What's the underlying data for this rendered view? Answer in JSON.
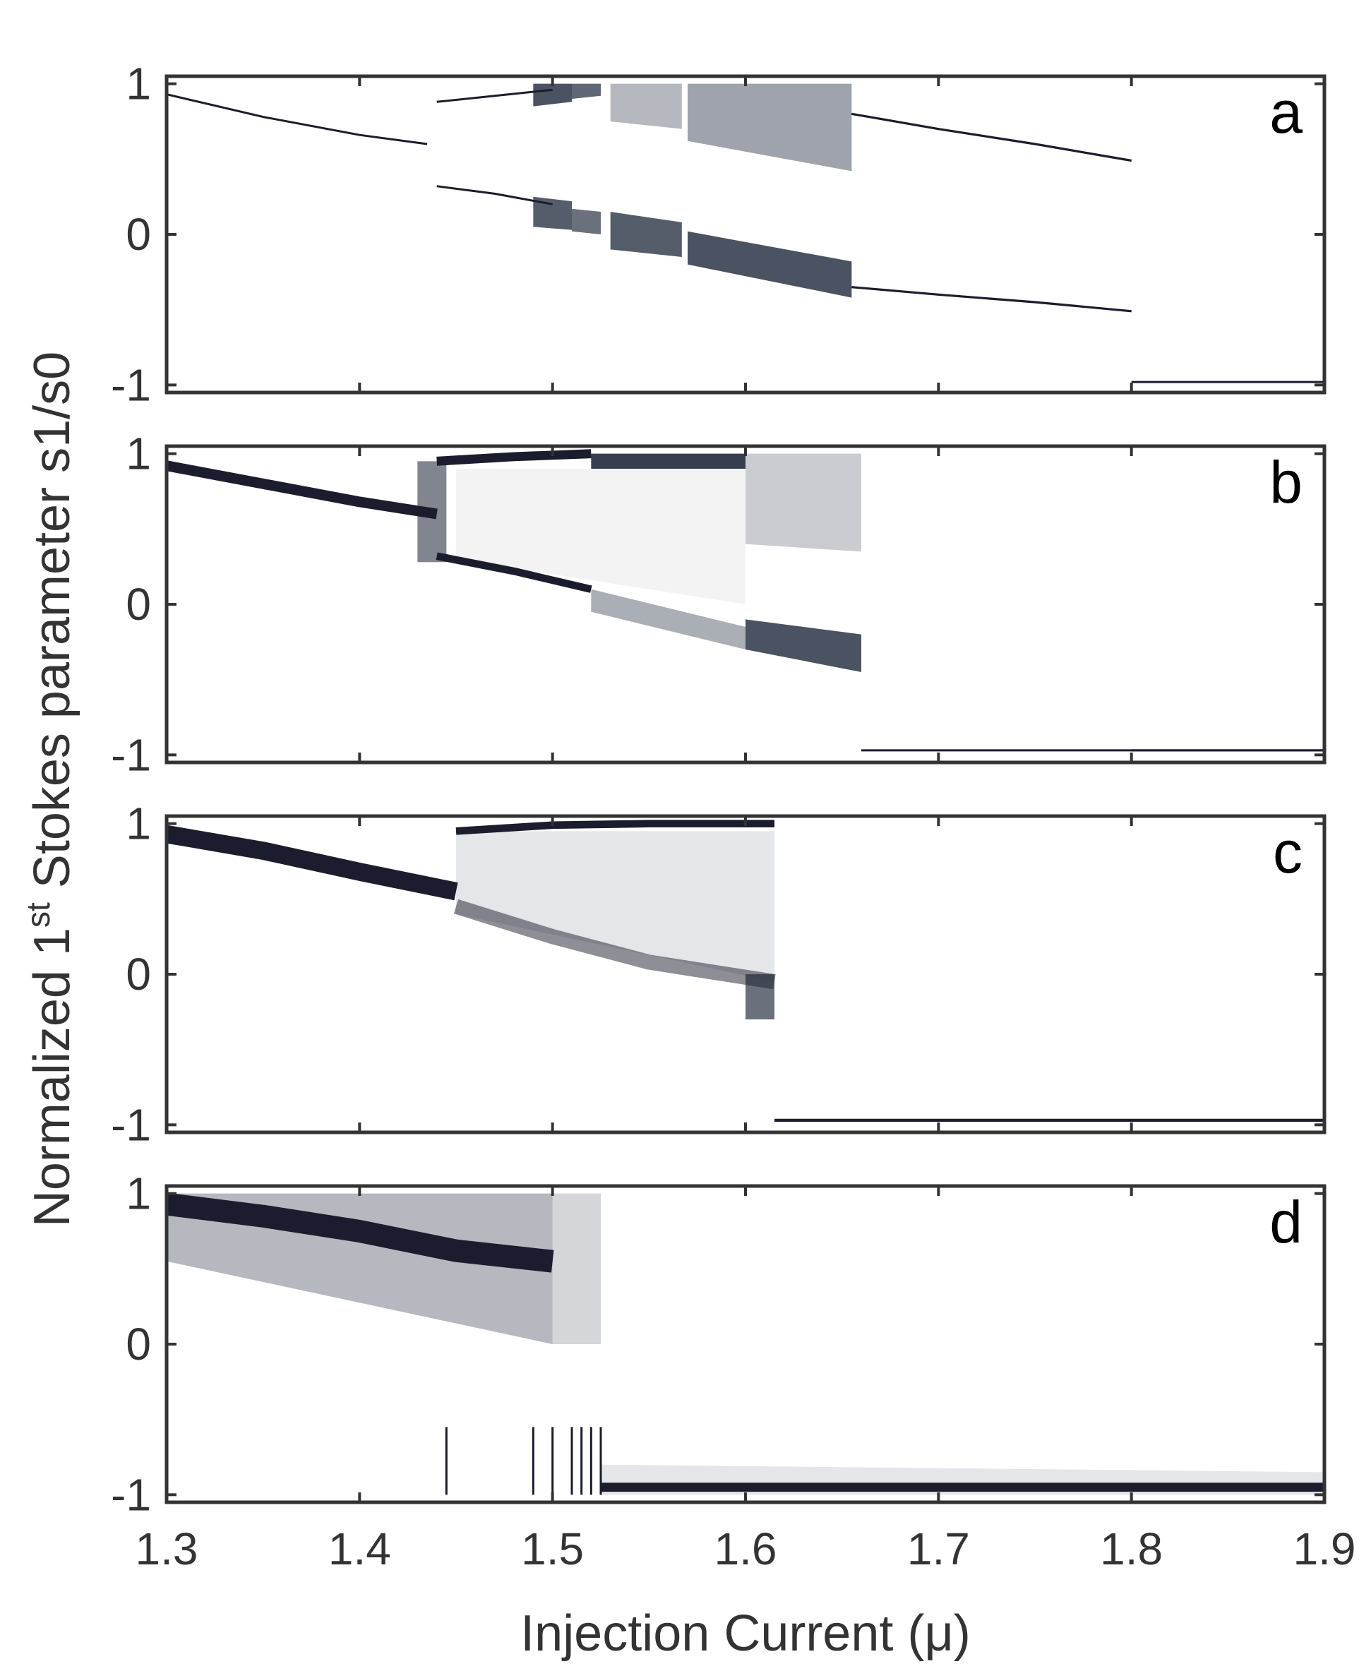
{
  "chart_data": {
    "type": "scatter",
    "description_free": true,
    "xlabel": "Injection Current (μ)",
    "ylabel_parts": {
      "pre": "Normalized 1",
      "sup": "st",
      "post": " Stokes parameter s1/s0"
    },
    "xlim": [
      1.3,
      1.9
    ],
    "ylim": [
      -1.05,
      1.05
    ],
    "x_ticks": [
      "1.3",
      "1.4",
      "1.5",
      "1.6",
      "1.7",
      "1.8",
      "1.9"
    ],
    "x_tick_values": [
      1.3,
      1.4,
      1.5,
      1.6,
      1.7,
      1.8,
      1.9
    ],
    "y_ticks": [
      "1",
      "0",
      "-1"
    ],
    "y_tick_values": [
      1,
      0,
      -1
    ],
    "grid": false,
    "panels": [
      {
        "label": "a",
        "branches": [
          {
            "x": [
              1.3,
              1.35,
              1.4,
              1.435
            ],
            "y": [
              0.93,
              0.78,
              0.66,
              0.6
            ],
            "width": 0.01,
            "shade": 1.0
          },
          {
            "x": [
              1.44,
              1.47,
              1.5
            ],
            "y": [
              0.88,
              0.92,
              0.96
            ],
            "width": 0.01,
            "shade": 1.0
          },
          {
            "x": [
              1.44,
              1.47,
              1.5
            ],
            "y": [
              0.32,
              0.27,
              0.2
            ],
            "width": 0.01,
            "shade": 1.0
          },
          {
            "x": [
              1.655,
              1.7,
              1.75,
              1.8
            ],
            "y": [
              0.8,
              0.7,
              0.6,
              0.49
            ],
            "width": 0.015,
            "shade": 1.0
          },
          {
            "x": [
              1.655,
              1.7,
              1.75,
              1.8
            ],
            "y": [
              -0.35,
              -0.4,
              -0.45,
              -0.51
            ],
            "width": 0.015,
            "shade": 1.0
          },
          {
            "x": [
              1.8,
              1.9
            ],
            "y": [
              -0.98,
              -0.98
            ],
            "width": 0.01,
            "shade": 1.0
          }
        ],
        "bands": [
          {
            "x": [
              1.49,
              1.51
            ],
            "ytop": [
              1.0,
              1.0
            ],
            "ybot": [
              0.85,
              0.88
            ],
            "shade": 0.85
          },
          {
            "x": [
              1.51,
              1.525
            ],
            "ytop": [
              1.0,
              1.0
            ],
            "ybot": [
              0.9,
              0.92
            ],
            "shade": 0.75
          },
          {
            "x": [
              1.49,
              1.51
            ],
            "ytop": [
              0.25,
              0.22
            ],
            "ybot": [
              0.05,
              0.03
            ],
            "shade": 0.8
          },
          {
            "x": [
              1.51,
              1.525
            ],
            "ytop": [
              0.17,
              0.15
            ],
            "ybot": [
              0.02,
              0.0
            ],
            "shade": 0.7
          },
          {
            "x": [
              1.53,
              1.567
            ],
            "ytop": [
              1.0,
              1.0
            ],
            "ybot": [
              0.75,
              0.7
            ],
            "shade": 0.35
          },
          {
            "x": [
              1.53,
              1.567
            ],
            "ytop": [
              0.15,
              0.08
            ],
            "ybot": [
              -0.1,
              -0.15
            ],
            "shade": 0.8
          },
          {
            "x": [
              1.57,
              1.655
            ],
            "ytop": [
              1.0,
              1.0
            ],
            "ybot": [
              0.62,
              0.42
            ],
            "shade": 0.45
          },
          {
            "x": [
              1.57,
              1.655
            ],
            "ytop": [
              0.02,
              -0.18
            ],
            "ybot": [
              -0.2,
              -0.42
            ],
            "shade": 0.85
          }
        ]
      },
      {
        "label": "b",
        "branches": [
          {
            "x": [
              1.3,
              1.35,
              1.4,
              1.44
            ],
            "y": [
              0.92,
              0.8,
              0.68,
              0.6
            ],
            "width": 0.07,
            "shade": 1.0
          },
          {
            "x": [
              1.44,
              1.48,
              1.52
            ],
            "y": [
              0.95,
              0.98,
              1.0
            ],
            "width": 0.06,
            "shade": 1.0
          },
          {
            "x": [
              1.44,
              1.48,
              1.52
            ],
            "y": [
              0.32,
              0.22,
              0.1
            ],
            "width": 0.05,
            "shade": 1.0
          },
          {
            "x": [
              1.8,
              1.9
            ],
            "y": [
              -0.97,
              -0.97
            ],
            "width": 0.01,
            "shade": 1.0
          },
          {
            "x": [
              1.66,
              1.9
            ],
            "y": [
              -0.97,
              -0.97
            ],
            "width": 0.01,
            "shade": 1.0
          }
        ],
        "bands": [
          {
            "x": [
              1.43,
              1.445
            ],
            "ytop": [
              0.95,
              0.95
            ],
            "ybot": [
              0.28,
              0.28
            ],
            "shade": 0.6
          },
          {
            "x": [
              1.52,
              1.6
            ],
            "ytop": [
              1.0,
              1.0
            ],
            "ybot": [
              0.9,
              0.9
            ],
            "shade": 0.95
          },
          {
            "x": [
              1.52,
              1.6
            ],
            "ytop": [
              0.1,
              -0.15
            ],
            "ybot": [
              -0.05,
              -0.3
            ],
            "shade": 0.4
          },
          {
            "x": [
              1.6,
              1.66
            ],
            "ytop": [
              1.0,
              1.0
            ],
            "ybot": [
              0.4,
              0.35
            ],
            "shade": 0.25
          },
          {
            "x": [
              1.6,
              1.66
            ],
            "ytop": [
              -0.1,
              -0.2
            ],
            "ybot": [
              -0.3,
              -0.45
            ],
            "shade": 0.85
          },
          {
            "x": [
              1.45,
              1.6
            ],
            "ytop": [
              0.9,
              0.9
            ],
            "ybot": [
              0.3,
              0.0
            ],
            "shade": 0.06
          }
        ]
      },
      {
        "label": "c",
        "branches": [
          {
            "x": [
              1.3,
              1.35,
              1.4,
              1.45
            ],
            "y": [
              0.93,
              0.82,
              0.68,
              0.55
            ],
            "width": 0.12,
            "shade": 1.0
          },
          {
            "x": [
              1.45,
              1.5,
              1.55,
              1.615
            ],
            "y": [
              0.95,
              0.99,
              1.0,
              1.0
            ],
            "width": 0.05,
            "shade": 1.0
          },
          {
            "x": [
              1.45,
              1.5,
              1.55,
              1.615
            ],
            "y": [
              0.45,
              0.25,
              0.08,
              -0.05
            ],
            "width": 0.1,
            "shade": 0.5
          },
          {
            "x": [
              1.615,
              1.9
            ],
            "y": [
              -0.97,
              -0.97
            ],
            "width": 0.02,
            "shade": 1.0
          }
        ],
        "bands": [
          {
            "x": [
              1.45,
              1.615
            ],
            "ytop": [
              0.95,
              0.95
            ],
            "ybot": [
              0.4,
              -0.05
            ],
            "shade": 0.12
          },
          {
            "x": [
              1.6,
              1.615
            ],
            "ytop": [
              0.0,
              0.0
            ],
            "ybot": [
              -0.3,
              -0.3
            ],
            "shade": 0.7
          }
        ]
      },
      {
        "label": "d",
        "branches": [
          {
            "x": [
              1.3,
              1.35,
              1.4,
              1.45,
              1.5
            ],
            "y": [
              0.93,
              0.85,
              0.75,
              0.62,
              0.55
            ],
            "width": 0.15,
            "shade": 1.0
          },
          {
            "x": [
              1.525,
              1.6,
              1.7,
              1.8,
              1.9
            ],
            "y": [
              -0.95,
              -0.95,
              -0.95,
              -0.95,
              -0.95
            ],
            "width": 0.06,
            "shade": 1.0
          }
        ],
        "bands": [
          {
            "x": [
              1.3,
              1.5
            ],
            "ytop": [
              1.0,
              1.0
            ],
            "ybot": [
              0.55,
              0.0
            ],
            "shade": 0.35
          },
          {
            "x": [
              1.5,
              1.525
            ],
            "ytop": [
              1.0,
              1.0
            ],
            "ybot": [
              0.0,
              0.0
            ],
            "shade": 0.2
          },
          {
            "x": [
              1.525,
              1.9
            ],
            "ytop": [
              -0.8,
              -0.85
            ],
            "ybot": [
              -1.0,
              -1.0
            ],
            "shade": 0.12
          }
        ],
        "spikes": [
          1.445,
          1.49,
          1.5,
          1.51,
          1.515,
          1.52,
          1.525
        ]
      }
    ]
  }
}
